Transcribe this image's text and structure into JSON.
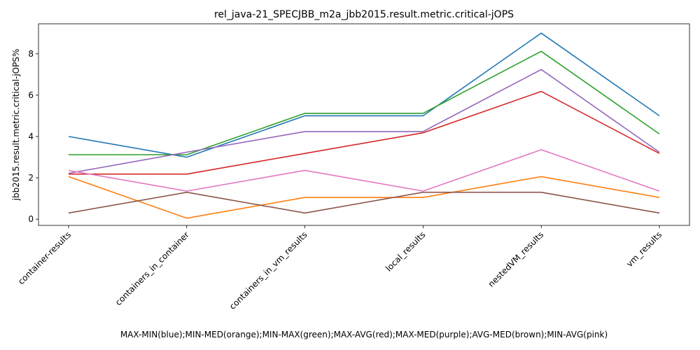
{
  "chart_data": {
    "type": "line",
    "title": "rel_java-21_SPECJBB_m2a_jbb2015.result.metric.critical-jOPS",
    "xlabel": "MAX-MIN(blue);MIN-MED(orange);MIN-MAX(green);MAX-AVG(red);MAX-MED(purple);AVG-MED(brown);MIN-AVG(pink)",
    "ylabel": "jbb2015.result.metric.critical-jOPS%",
    "categories": [
      "container-results",
      "containers_in_container",
      "containers_in_vm_results",
      "local_results",
      "nestedVM_results",
      "vm_results"
    ],
    "ylim": [
      -0.3,
      9.45
    ],
    "yticks": [
      0,
      2,
      4,
      6,
      8
    ],
    "grid": false,
    "series": [
      {
        "color": "#1f77b4",
        "values": [
          4.0,
          3.0,
          5.0,
          5.0,
          9.0,
          5.0
        ]
      },
      {
        "color": "#ff7f0e",
        "values": [
          2.06,
          0.05,
          1.05,
          1.05,
          2.06,
          1.05
        ]
      },
      {
        "color": "#2ca02c",
        "values": [
          3.12,
          3.12,
          5.12,
          5.12,
          8.12,
          4.12
        ]
      },
      {
        "color": "#d62728",
        "values": [
          2.18,
          2.18,
          3.18,
          4.18,
          6.18,
          3.18
        ]
      },
      {
        "color": "#9467bd",
        "values": [
          2.22,
          3.24,
          4.24,
          4.24,
          7.24,
          3.24
        ]
      },
      {
        "color": "#8c564b",
        "values": [
          0.3,
          1.3,
          0.3,
          1.3,
          1.3,
          0.3
        ]
      },
      {
        "color": "#e377c2",
        "values": [
          2.36,
          1.36,
          2.36,
          1.36,
          3.36,
          1.36
        ]
      }
    ]
  }
}
